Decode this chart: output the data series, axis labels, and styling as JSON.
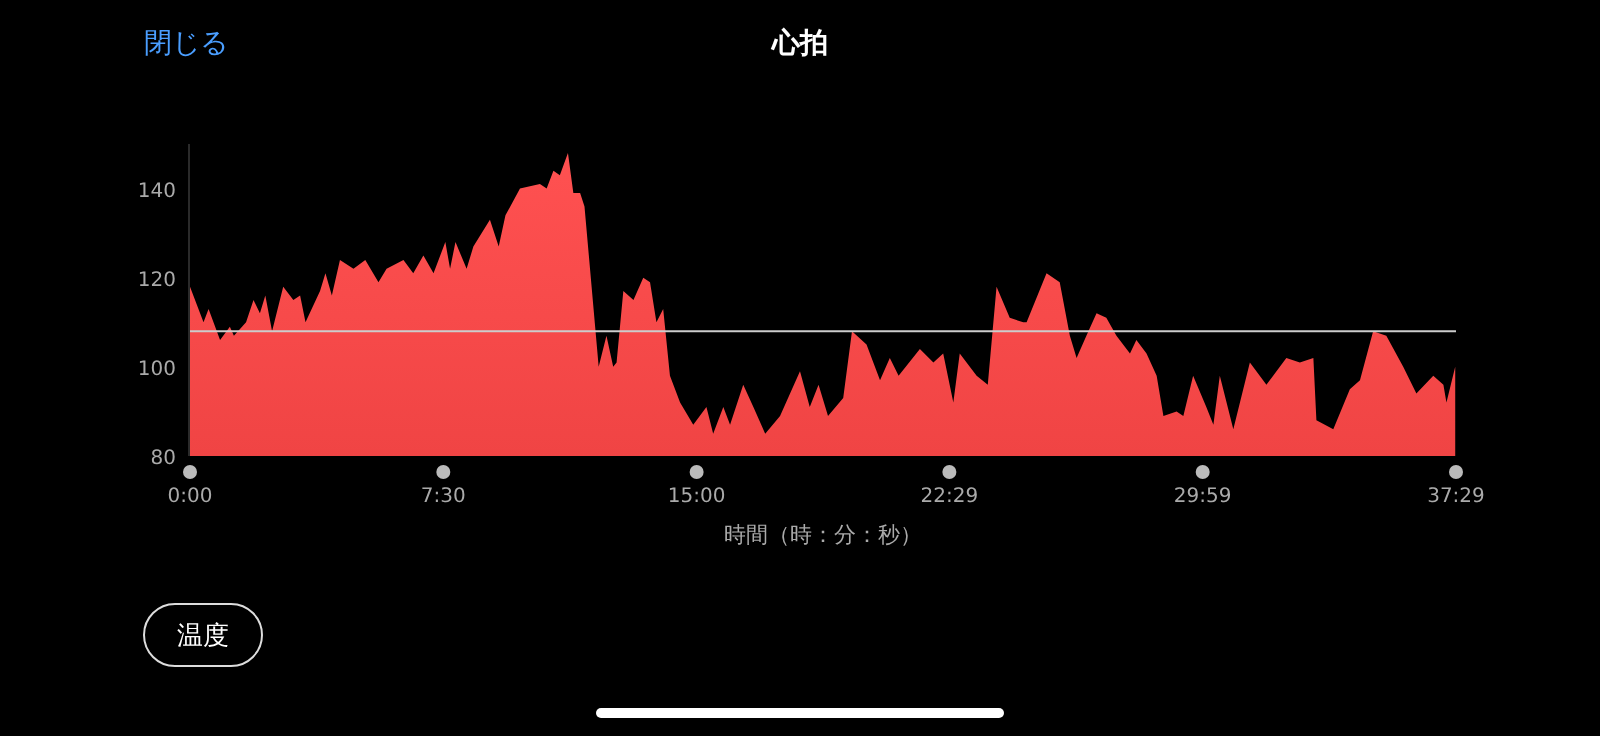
{
  "chart_data": {
    "type": "area",
    "title": "心拍",
    "xlabel": "時間（時：分：秒）",
    "annotations": [
      "閉じる",
      "温度"
    ],
    "xlim": [
      0,
      37.483
    ],
    "xticks": [
      {
        "value": 0,
        "label": "0:00"
      },
      {
        "value": 7.5,
        "label": "7:30"
      },
      {
        "value": 15,
        "label": "15:00"
      },
      {
        "value": 22.483,
        "label": "22:29"
      },
      {
        "value": 29.983,
        "label": "29:59"
      },
      {
        "value": 37.483,
        "label": "37:29"
      }
    ],
    "ylim": [
      80,
      150
    ],
    "yticks": [
      80,
      100,
      120,
      140
    ],
    "grid": false,
    "ref_lines": [
      {
        "axis": "y",
        "value": 108,
        "color": "#cccccc"
      }
    ],
    "series": [
      {
        "color": "#f04444",
        "x": [
          0,
          0.4,
          0.55,
          0.89,
          1.18,
          1.3,
          1.66,
          1.88,
          2.07,
          2.23,
          2.43,
          2.76,
          3.06,
          3.26,
          3.42,
          3.85,
          4.01,
          4.2,
          4.44,
          4.84,
          5.19,
          5.58,
          5.82,
          6.32,
          6.61,
          6.91,
          7.21,
          7.56,
          7.7,
          7.86,
          8.19,
          8.39,
          8.88,
          9.14,
          9.34,
          9.77,
          10.36,
          10.56,
          10.76,
          10.95,
          11.19,
          11.35,
          11.55,
          11.68,
          12.1,
          12.33,
          12.53,
          12.63,
          12.83,
          13.13,
          13.42,
          13.62,
          13.81,
          14.01,
          14.21,
          14.51,
          14.9,
          15.29,
          15.49,
          15.79,
          15.99,
          16.38,
          16.68,
          17.03,
          17.47,
          18.06,
          18.35,
          18.61,
          18.89,
          19.34,
          19.6,
          20.03,
          20.43,
          20.72,
          20.98,
          21.61,
          22.01,
          22.3,
          22.6,
          22.79,
          23.29,
          23.62,
          23.88,
          24.27,
          24.67,
          24.77,
          25.36,
          25.75,
          26.05,
          26.25,
          26.54,
          26.84,
          27.13,
          27.43,
          27.83,
          28.02,
          28.32,
          28.62,
          28.82,
          29.21,
          29.41,
          29.7,
          30.09,
          30.3,
          30.49,
          30.89,
          31.38,
          31.87,
          32.46,
          32.86,
          33.26,
          33.35,
          33.85,
          34.34,
          34.64,
          35.03,
          35.42,
          35.92,
          36.31,
          36.81,
          37.11,
          37.2,
          37.46
        ],
        "values": [
          118,
          110,
          113,
          106,
          109,
          107,
          110,
          115,
          112,
          116,
          108,
          118,
          115,
          116,
          110,
          117,
          121,
          116,
          124,
          122,
          124,
          119,
          122,
          124,
          121,
          125,
          121,
          128,
          122,
          128,
          122,
          127,
          133,
          127,
          134,
          140,
          141,
          140,
          144,
          143,
          148,
          139,
          139,
          136,
          100,
          107,
          100,
          101,
          117,
          115,
          120,
          119,
          110,
          113,
          98,
          92,
          87,
          91,
          85,
          91,
          87,
          96,
          91,
          85,
          89,
          99,
          91,
          96,
          89,
          93,
          108,
          105,
          97,
          102,
          98,
          104,
          101,
          103,
          92,
          103,
          98,
          96,
          118,
          111,
          110,
          110,
          121,
          119,
          107,
          102,
          107,
          112,
          111,
          107,
          103,
          106,
          103,
          98,
          89,
          90,
          89,
          98,
          91,
          87,
          98,
          86,
          101,
          96,
          102,
          101,
          102,
          88,
          86,
          95,
          97,
          108,
          107,
          100,
          94,
          98,
          96,
          92,
          100
        ]
      }
    ]
  }
}
